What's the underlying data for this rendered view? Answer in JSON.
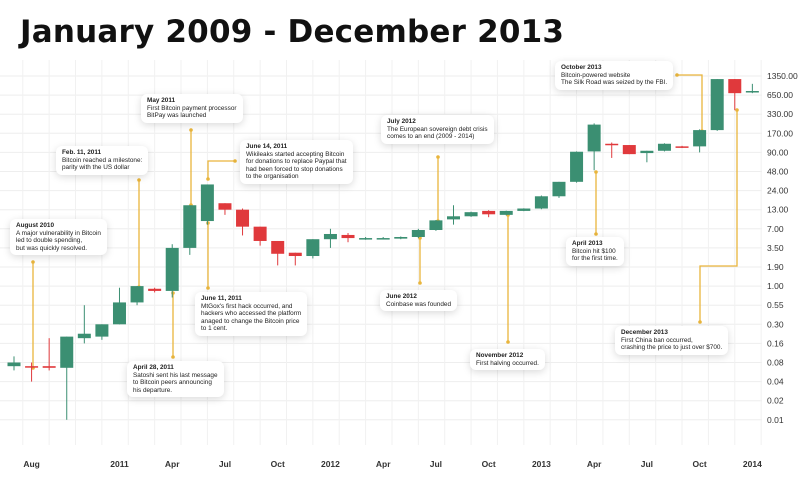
{
  "title": "January 2009 - December 2013",
  "chart_data": {
    "type": "candlestick",
    "title": "January 2009 - December 2013",
    "y_scale": "log",
    "y_ticks": [
      "1350.00",
      "650.00",
      "330.00",
      "170.00",
      "90.00",
      "48.00",
      "24.00",
      "13.00",
      "7.00",
      "3.50",
      "1.90",
      "1.00",
      "0.55",
      "0.30",
      "0.16",
      "0.08",
      "0.04",
      "0.02",
      "0.01"
    ],
    "x_ticks": [
      {
        "label": "Aug",
        "date": "2010-08"
      },
      {
        "label": "2011",
        "date": "2011-01"
      },
      {
        "label": "Apr",
        "date": "2011-04"
      },
      {
        "label": "Jul",
        "date": "2011-07"
      },
      {
        "label": "Oct",
        "date": "2011-10"
      },
      {
        "label": "2012",
        "date": "2012-01"
      },
      {
        "label": "Apr",
        "date": "2012-04"
      },
      {
        "label": "Jul",
        "date": "2012-07"
      },
      {
        "label": "Oct",
        "date": "2012-10"
      },
      {
        "label": "2013",
        "date": "2013-01"
      },
      {
        "label": "Apr",
        "date": "2013-04"
      },
      {
        "label": "Jul",
        "date": "2013-07"
      },
      {
        "label": "Oct",
        "date": "2013-10"
      },
      {
        "label": "2014",
        "date": "2014-01"
      }
    ],
    "grid": true,
    "colors": {
      "up": "#3b8f72",
      "down": "#e0393c",
      "annotation_line": "#e9b53c"
    },
    "candles": [
      {
        "date": "2010-07",
        "o": 0.07,
        "h": 0.1,
        "l": 0.06,
        "c": 0.08
      },
      {
        "date": "2010-08",
        "o": 0.07,
        "h": 0.08,
        "l": 0.04,
        "c": 0.069
      },
      {
        "date": "2010-09",
        "o": 0.07,
        "h": 0.19,
        "l": 0.06,
        "c": 0.066
      },
      {
        "date": "2010-10",
        "o": 0.066,
        "h": 0.2,
        "l": 0.01,
        "c": 0.2
      },
      {
        "date": "2010-11",
        "o": 0.19,
        "h": 0.55,
        "l": 0.16,
        "c": 0.22
      },
      {
        "date": "2010-12",
        "o": 0.2,
        "h": 0.3,
        "l": 0.18,
        "c": 0.3
      },
      {
        "date": "2011-01",
        "o": 0.3,
        "h": 0.95,
        "l": 0.3,
        "c": 0.6
      },
      {
        "date": "2011-02",
        "o": 0.6,
        "h": 1.0,
        "l": 0.55,
        "c": 1.0
      },
      {
        "date": "2011-03",
        "o": 0.92,
        "h": 0.95,
        "l": 0.82,
        "c": 0.86
      },
      {
        "date": "2011-04",
        "o": 0.86,
        "h": 4.0,
        "l": 0.7,
        "c": 3.5
      },
      {
        "date": "2011-05",
        "o": 3.5,
        "h": 15,
        "l": 2.8,
        "c": 15
      },
      {
        "date": "2011-06",
        "o": 9,
        "h": 30,
        "l": 8,
        "c": 30
      },
      {
        "date": "2011-07",
        "o": 16,
        "h": 16,
        "l": 11,
        "c": 13
      },
      {
        "date": "2011-08",
        "o": 13,
        "h": 13.5,
        "l": 5.5,
        "c": 7.5
      },
      {
        "date": "2011-09",
        "o": 7.5,
        "h": 7.5,
        "l": 3.8,
        "c": 4.5
      },
      {
        "date": "2011-10",
        "o": 4.5,
        "h": 4.5,
        "l": 2.0,
        "c": 2.9
      },
      {
        "date": "2011-11",
        "o": 3.0,
        "h": 3.0,
        "l": 2.0,
        "c": 2.7
      },
      {
        "date": "2011-12",
        "o": 2.7,
        "h": 4.8,
        "l": 2.5,
        "c": 4.8
      },
      {
        "date": "2012-01",
        "o": 4.8,
        "h": 7,
        "l": 3.5,
        "c": 5.8
      },
      {
        "date": "2012-02",
        "o": 5.6,
        "h": 6,
        "l": 4.3,
        "c": 5.0
      },
      {
        "date": "2012-03",
        "o": 4.9,
        "h": 5.2,
        "l": 4.7,
        "c": 5.0
      },
      {
        "date": "2012-04",
        "o": 4.95,
        "h": 5.2,
        "l": 4.8,
        "c": 5.0
      },
      {
        "date": "2012-05",
        "o": 4.9,
        "h": 5.3,
        "l": 4.8,
        "c": 5.2
      },
      {
        "date": "2012-06",
        "o": 5.2,
        "h": 7,
        "l": 5,
        "c": 6.7
      },
      {
        "date": "2012-07",
        "o": 6.7,
        "h": 9.3,
        "l": 6.5,
        "c": 9.2
      },
      {
        "date": "2012-08",
        "o": 9.5,
        "h": 15,
        "l": 8,
        "c": 10.5
      },
      {
        "date": "2012-09",
        "o": 10.5,
        "h": 12.2,
        "l": 10.3,
        "c": 12
      },
      {
        "date": "2012-10",
        "o": 12.5,
        "h": 12.8,
        "l": 10.2,
        "c": 11.2
      },
      {
        "date": "2012-11",
        "o": 11,
        "h": 12.6,
        "l": 10.8,
        "c": 12.5
      },
      {
        "date": "2012-12",
        "o": 12.5,
        "h": 13.6,
        "l": 12.4,
        "c": 13.5
      },
      {
        "date": "2013-01",
        "o": 13.5,
        "h": 20.5,
        "l": 13.2,
        "c": 20
      },
      {
        "date": "2013-02",
        "o": 20,
        "h": 33,
        "l": 19,
        "c": 33
      },
      {
        "date": "2013-03",
        "o": 33,
        "h": 93,
        "l": 32,
        "c": 92
      },
      {
        "date": "2013-04",
        "o": 93,
        "h": 240,
        "l": 50,
        "c": 230
      },
      {
        "date": "2013-05",
        "o": 120,
        "h": 125,
        "l": 75,
        "c": 115
      },
      {
        "date": "2013-06",
        "o": 115,
        "h": 115,
        "l": 85,
        "c": 85
      },
      {
        "date": "2013-07",
        "o": 88,
        "h": 95,
        "l": 65,
        "c": 95
      },
      {
        "date": "2013-08",
        "o": 95,
        "h": 122,
        "l": 93,
        "c": 120
      },
      {
        "date": "2013-09",
        "o": 110,
        "h": 112,
        "l": 104,
        "c": 107
      },
      {
        "date": "2013-10",
        "o": 110,
        "h": 195,
        "l": 90,
        "c": 190
      },
      {
        "date": "2013-11",
        "o": 190,
        "h": 1200,
        "l": 185,
        "c": 1200
      },
      {
        "date": "2013-12",
        "o": 1200,
        "h": 1200,
        "l": 380,
        "c": 700
      },
      {
        "date": "2014-01",
        "o": 720,
        "h": 1000,
        "l": 700,
        "c": 760
      }
    ],
    "annotations": [
      {
        "heading": "August 2010",
        "lines": [
          "A major vulnerability in Bitcoin",
          "led to double spending,",
          "but was quickly resolved."
        ]
      },
      {
        "heading": "Feb. 11, 2011",
        "lines": [
          "Bitcoin reached a milestone:",
          "parity with the US dollar"
        ]
      },
      {
        "heading": "May 2011",
        "lines": [
          "First Bitcoin payment processor",
          "BitPay was launched"
        ]
      },
      {
        "heading": "June 14, 2011",
        "lines": [
          "Wikileaks started accepting Bitcoin",
          "for donations to replace Paypal that",
          "had been forced to stop donations",
          "to the organisation"
        ]
      },
      {
        "heading": "June 11, 2011",
        "lines": [
          "MtGox's first hack occurred, and",
          "hackers who accessed the platform",
          "anaged to change the Bitcoin price",
          "to 1 cent."
        ]
      },
      {
        "heading": "April 28, 2011",
        "lines": [
          "Satoshi sent his last message",
          "to Bitcoin peers announcing",
          "his departure."
        ]
      },
      {
        "heading": "July 2012",
        "lines": [
          "The European sovereign debt crisis",
          "comes to an end (2009 - 2014)"
        ]
      },
      {
        "heading": "June 2012",
        "lines": [
          "Coinbase was founded"
        ]
      },
      {
        "heading": "November 2012",
        "lines": [
          "First halving occurred."
        ]
      },
      {
        "heading": "April 2013",
        "lines": [
          "Bitcoin hit $100",
          "for the first time."
        ]
      },
      {
        "heading": "October 2013",
        "lines": [
          "Bitcoin-powered website",
          "The Silk Road was seized by the FBI."
        ]
      },
      {
        "heading": "December 2013",
        "lines": [
          "First China ban occurred,",
          "crashing the price to just over $700."
        ]
      }
    ]
  }
}
